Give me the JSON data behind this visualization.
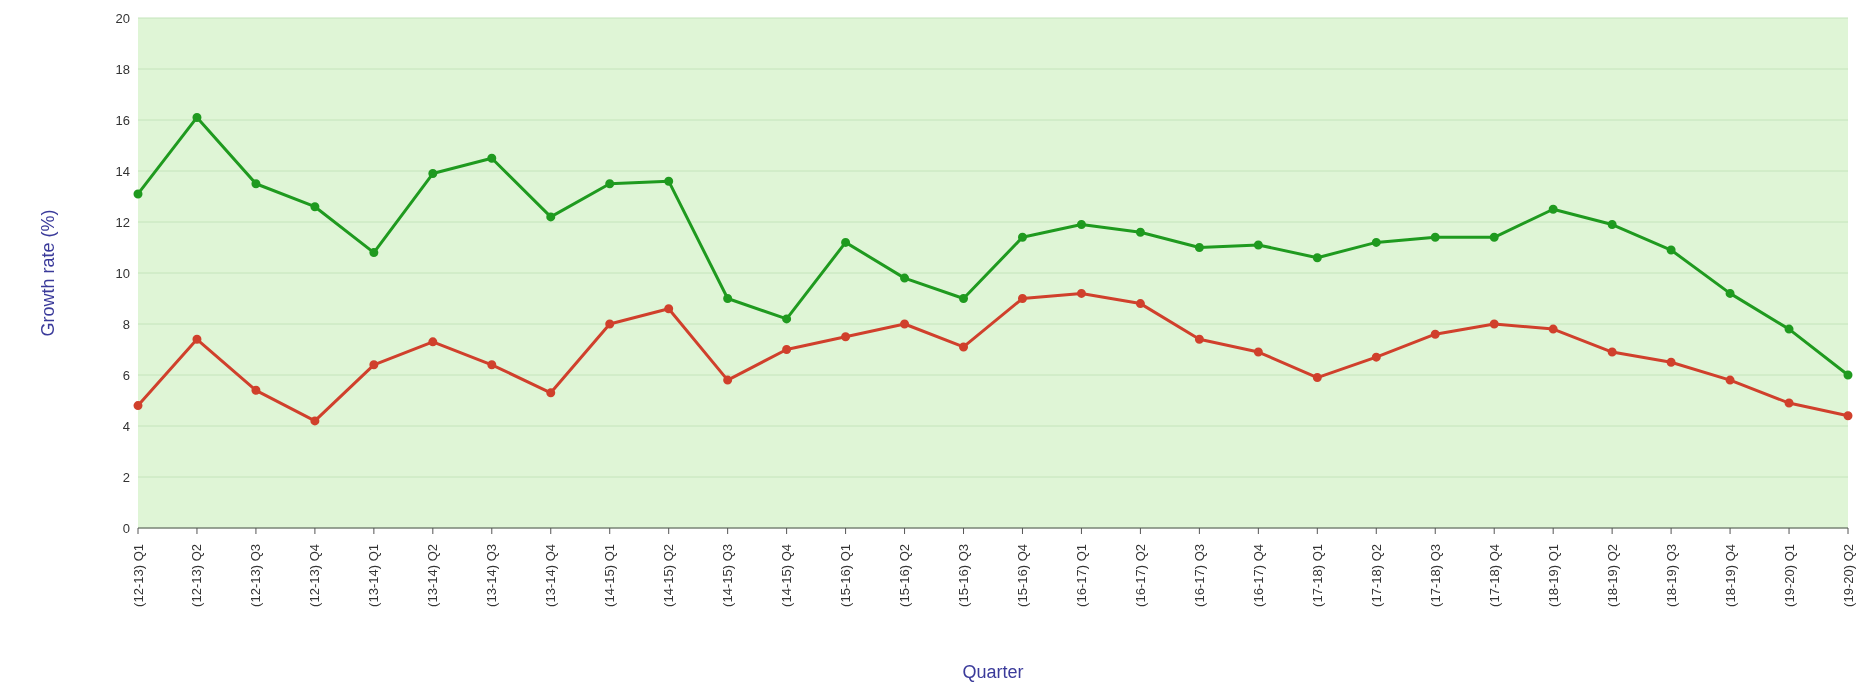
{
  "chart_data": {
    "type": "line",
    "xlabel": "Quarter",
    "ylabel": "Growth rate (%)",
    "categories": [
      "(12-13) Q1",
      "(12-13) Q2",
      "(12-13) Q3",
      "(12-13) Q4",
      "(13-14) Q1",
      "(13-14) Q2",
      "(13-14) Q3",
      "(13-14) Q4",
      "(14-15) Q1",
      "(14-15) Q2",
      "(14-15) Q3",
      "(14-15) Q4",
      "(15-16) Q1",
      "(15-16) Q2",
      "(15-16) Q3",
      "(15-16) Q4",
      "(16-17) Q1",
      "(16-17) Q2",
      "(16-17) Q3",
      "(16-17) Q4",
      "(17-18) Q1",
      "(17-18) Q2",
      "(17-18) Q3",
      "(17-18) Q4",
      "(18-19) Q1",
      "(18-19) Q2",
      "(18-19) Q3",
      "(18-19) Q4",
      "(19-20) Q1",
      "(19-20) Q2"
    ],
    "series": [
      {
        "color": "#1f9a1f",
        "values": [
          13.1,
          16.1,
          13.5,
          12.6,
          10.8,
          13.9,
          14.5,
          12.2,
          13.5,
          13.6,
          9.0,
          8.2,
          11.2,
          9.8,
          9.0,
          11.4,
          11.9,
          11.6,
          11.0,
          11.1,
          10.6,
          11.2,
          11.4,
          11.4,
          12.5,
          11.9,
          10.9,
          9.2,
          7.8,
          6.0
        ]
      },
      {
        "color": "#d0402c",
        "values": [
          4.8,
          7.4,
          5.4,
          4.2,
          6.4,
          7.3,
          6.4,
          5.3,
          8.0,
          8.6,
          5.8,
          7.0,
          7.5,
          8.0,
          7.1,
          9.0,
          9.2,
          8.8,
          7.4,
          6.9,
          5.9,
          6.7,
          7.6,
          8.0,
          7.8,
          6.9,
          6.5,
          5.8,
          4.9,
          4.4
        ]
      }
    ],
    "ylim": [
      0,
      20
    ],
    "yticks": [
      0,
      2,
      4,
      6,
      8,
      10,
      12,
      14,
      16,
      18,
      20
    ],
    "grid": "y",
    "marker": "circle",
    "line_style": "solid"
  }
}
